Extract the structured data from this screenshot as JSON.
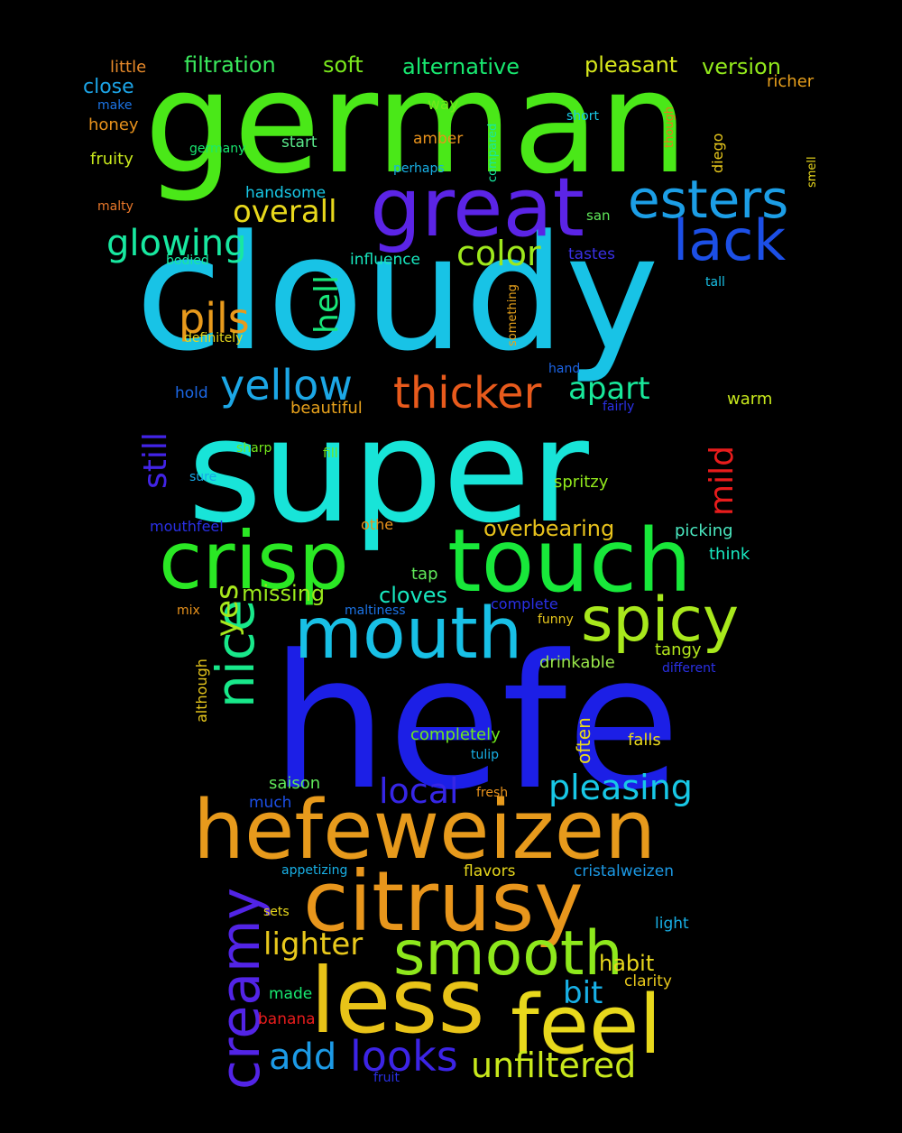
{
  "words": [
    {
      "text": "hefe",
      "color": "#1c1fe6"
    },
    {
      "text": "super",
      "color": "#18e4d8"
    },
    {
      "text": "cloudy",
      "color": "#18c3e6"
    },
    {
      "text": "german",
      "color": "#4ae818"
    },
    {
      "text": "hefeweizen",
      "color": "#e79a1c"
    },
    {
      "text": "less",
      "color": "#e8c318"
    },
    {
      "text": "citrusy",
      "color": "#e8961c"
    },
    {
      "text": "touch",
      "color": "#18e83a"
    },
    {
      "text": "crisp",
      "color": "#2ae824"
    },
    {
      "text": "great",
      "color": "#5b24e6"
    },
    {
      "text": "feel",
      "color": "#e8d81c"
    },
    {
      "text": "mouth",
      "color": "#18c0e6"
    },
    {
      "text": "smooth",
      "color": "#8ee81c"
    },
    {
      "text": "spicy",
      "color": "#a8e81c"
    },
    {
      "text": "lack",
      "color": "#1c4fe6"
    },
    {
      "text": "esters",
      "color": "#1c9ee6"
    },
    {
      "text": "nice",
      "color": "#18e88a"
    },
    {
      "text": "creamy",
      "color": "#5224e6"
    },
    {
      "text": "thicker",
      "color": "#e85a1c"
    },
    {
      "text": "yellow",
      "color": "#1ca7e6"
    },
    {
      "text": "pils",
      "color": "#e89a1c"
    },
    {
      "text": "glowing",
      "color": "#18e8a0"
    },
    {
      "text": "looks",
      "color": "#3c24e6"
    },
    {
      "text": "unfiltered",
      "color": "#c8e81c"
    },
    {
      "text": "pleasing",
      "color": "#18c8e6"
    },
    {
      "text": "color",
      "color": "#9ee81c"
    },
    {
      "text": "local",
      "color": "#3626e6"
    },
    {
      "text": "add",
      "color": "#1c9ae6"
    },
    {
      "text": "lighter",
      "color": "#e8c81c"
    },
    {
      "text": "overall",
      "color": "#e8d81c"
    },
    {
      "text": "hell",
      "color": "#18e87a"
    },
    {
      "text": "apart",
      "color": "#18e89a"
    },
    {
      "text": "still",
      "color": "#4224e6"
    },
    {
      "text": "mild",
      "color": "#e81c1c"
    },
    {
      "text": "yes",
      "color": "#a8e81c"
    },
    {
      "text": "bit",
      "color": "#18b0e6"
    },
    {
      "text": "missing",
      "color": "#9ae81c"
    },
    {
      "text": "cloves",
      "color": "#18e8c0"
    },
    {
      "text": "overbearing",
      "color": "#e8c21c"
    },
    {
      "text": "alternative",
      "color": "#18e870"
    },
    {
      "text": "filtration",
      "color": "#3ae85c"
    },
    {
      "text": "soft",
      "color": "#7ae81c"
    },
    {
      "text": "pleasant",
      "color": "#d8e81c"
    },
    {
      "text": "version",
      "color": "#92e81c"
    },
    {
      "text": "habit",
      "color": "#e8d81c"
    },
    {
      "text": "close",
      "color": "#1ca4e6"
    },
    {
      "text": "little",
      "color": "#e88a2a"
    },
    {
      "text": "richer",
      "color": "#e8a01c"
    },
    {
      "text": "beautiful",
      "color": "#e8a21c"
    },
    {
      "text": "drinkable",
      "color": "#9ae84a"
    },
    {
      "text": "completely",
      "color": "#6ee81c"
    },
    {
      "text": "often",
      "color": "#e8d81c"
    },
    {
      "text": "falls",
      "color": "#e8d81c"
    },
    {
      "text": "saison",
      "color": "#60e85a"
    },
    {
      "text": "spritzy",
      "color": "#92e81c"
    },
    {
      "text": "picking",
      "color": "#4ae8c0"
    },
    {
      "text": "think",
      "color": "#18e8c0"
    },
    {
      "text": "tap",
      "color": "#60e85a"
    },
    {
      "text": "tangy",
      "color": "#b4e81c"
    },
    {
      "text": "warm",
      "color": "#c8e81c"
    },
    {
      "text": "hold",
      "color": "#1c68e6"
    },
    {
      "text": "handsome",
      "color": "#18c8e6"
    },
    {
      "text": "influence",
      "color": "#18e8c0"
    },
    {
      "text": "tastes",
      "color": "#3a30e6"
    },
    {
      "text": "amber",
      "color": "#e8921c"
    },
    {
      "text": "start",
      "color": "#5ae88a"
    },
    {
      "text": "way",
      "color": "#72e81c"
    },
    {
      "text": "honey",
      "color": "#e8921c"
    },
    {
      "text": "fruity",
      "color": "#c8e81c"
    },
    {
      "text": "germany",
      "color": "#18e870"
    },
    {
      "text": "make",
      "color": "#1c74e6"
    },
    {
      "text": "malty",
      "color": "#e8782a"
    },
    {
      "text": "bodied",
      "color": "#18e8a0"
    },
    {
      "text": "definitely",
      "color": "#e8d81c"
    },
    {
      "text": "perhaps",
      "color": "#18b0e6"
    },
    {
      "text": "compared",
      "color": "#18e8a0"
    },
    {
      "text": "short",
      "color": "#18c8e6"
    },
    {
      "text": "though",
      "color": "#e8781c"
    },
    {
      "text": "diego",
      "color": "#e8c81c"
    },
    {
      "text": "smell",
      "color": "#e8d81c"
    },
    {
      "text": "san",
      "color": "#60e85a"
    },
    {
      "text": "tall",
      "color": "#18c0e6"
    },
    {
      "text": "something",
      "color": "#e8a21c"
    },
    {
      "text": "hand",
      "color": "#1c64e6"
    },
    {
      "text": "fairly",
      "color": "#2a30e6"
    },
    {
      "text": "sharp",
      "color": "#72e81c"
    },
    {
      "text": "fill",
      "color": "#72e81c"
    },
    {
      "text": "sure",
      "color": "#18a8e6"
    },
    {
      "text": "mouthfeel",
      "color": "#2a30e6"
    },
    {
      "text": "othe",
      "color": "#e8921c"
    },
    {
      "text": "complete",
      "color": "#2a30e6"
    },
    {
      "text": "maltiness",
      "color": "#1c74e6"
    },
    {
      "text": "funny",
      "color": "#e8c81c"
    },
    {
      "text": "mix",
      "color": "#e8921c"
    },
    {
      "text": "although",
      "color": "#e8c81c"
    },
    {
      "text": "different",
      "color": "#2a30e6"
    },
    {
      "text": "tulip",
      "color": "#18b0e6"
    },
    {
      "text": "fresh",
      "color": "#e8921c"
    },
    {
      "text": "much",
      "color": "#1c4fe6"
    },
    {
      "text": "appetizing",
      "color": "#18b0e6"
    },
    {
      "text": "flavors",
      "color": "#e8d81c"
    },
    {
      "text": "cristalweizen",
      "color": "#1c9ae6"
    },
    {
      "text": "sets",
      "color": "#e8d81c"
    },
    {
      "text": "light",
      "color": "#18b0e6"
    },
    {
      "text": "clarity",
      "color": "#e8c81c"
    },
    {
      "text": "made",
      "color": "#18e870"
    },
    {
      "text": "banana",
      "color": "#e81c1c"
    },
    {
      "text": "fruit",
      "color": "#2a30e6"
    }
  ]
}
